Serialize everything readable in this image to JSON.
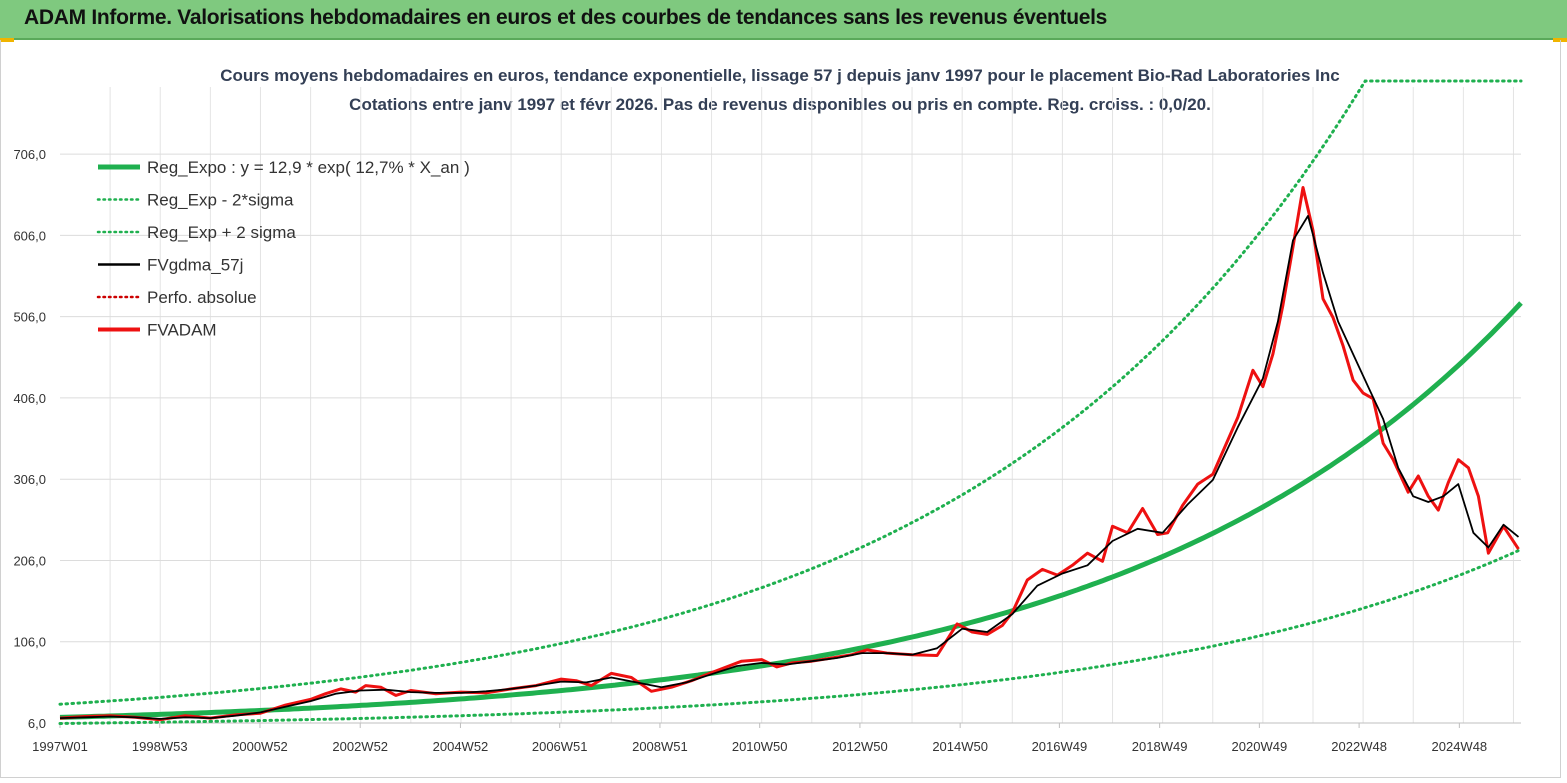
{
  "header": {
    "title": "ADAM Informe. Valorisations hebdomadaires en euros et des courbes de tendances sans les revenus éventuels"
  },
  "colors": {
    "banner": "#7fc97f",
    "reg": "#1fb04f",
    "fv": "#000000",
    "fvadam": "#ee1111",
    "perf": "#cc0000"
  },
  "chart_data": {
    "type": "line",
    "title": "Cours moyens hebdomadaires en euros, tendance exponentielle, lissage 57 j depuis janv 1997 pour le placement Bio-Rad Laboratories Inc",
    "subtitle": "Cotations entre janv 1997 et févr 2026. Pas de revenus disponibles ou pris en  compte. Reg. croiss. : 0,0/20.",
    "xlabel": "",
    "ylabel": "",
    "x_range": [
      1997.0,
      2026.15
    ],
    "ylim": [
      6,
      796
    ],
    "yticks": [
      6,
      106,
      206,
      306,
      406,
      506,
      606,
      706
    ],
    "ytick_labels": [
      "6,0",
      "106,0",
      "206,0",
      "306,0",
      "406,0",
      "506,0",
      "606,0",
      "706,0"
    ],
    "xticks": [
      1997.0,
      1998.99,
      2000.99,
      2002.99,
      2004.99,
      2006.97,
      2008.97,
      2010.96,
      2012.96,
      2014.96,
      2016.94,
      2018.94,
      2020.93,
      2022.92,
      2024.92
    ],
    "xtick_labels": [
      "1997W01",
      "1998W53",
      "2000W52",
      "2002W52",
      "2004W52",
      "2006W51",
      "2008W51",
      "2010W50",
      "2012W50",
      "2014W50",
      "2016W49",
      "2018W49",
      "2020W49",
      "2022W48",
      "2024W48"
    ],
    "legend": [
      {
        "name": "Reg_Expo : y = 12,9 * exp( 12,7% *  X_an )",
        "style": "thick-solid",
        "color": "#1fb04f"
      },
      {
        "name": "Reg_Exp - 2*sigma",
        "style": "dotted",
        "color": "#1fb04f"
      },
      {
        "name": "Reg_Exp + 2 sigma",
        "style": "dotted",
        "color": "#1fb04f"
      },
      {
        "name": "FVgdma_57j",
        "style": "solid",
        "color": "#000000"
      },
      {
        "name": "Perfo. absolue",
        "style": "dotted",
        "color": "#cc0000"
      },
      {
        "name": "FVADAM",
        "style": "thick-solid",
        "color": "#ee1111"
      }
    ],
    "legend_position": "top-left",
    "regression": {
      "a": 12.9,
      "rate": 0.127,
      "x0": 1997.0,
      "lower_factor": 0.42,
      "upper_factor": 2.26,
      "cap": 796
    },
    "series": [
      {
        "name": "FVADAM",
        "x": [
          1997.0,
          1997.5,
          1998.0,
          1998.5,
          1999.0,
          1999.5,
          2000.0,
          2000.5,
          2001.0,
          2001.5,
          2002.0,
          2002.3,
          2002.6,
          2002.9,
          2003.1,
          2003.4,
          2003.7,
          2004.0,
          2004.5,
          2005.0,
          2005.5,
          2006.0,
          2006.5,
          2007.0,
          2007.3,
          2007.6,
          2008.0,
          2008.4,
          2008.8,
          2009.2,
          2009.6,
          2010.0,
          2010.3,
          2010.6,
          2011.0,
          2011.3,
          2011.6,
          2012.0,
          2012.4,
          2012.8,
          2013.1,
          2013.5,
          2014.0,
          2014.5,
          2014.9,
          2015.2,
          2015.5,
          2015.8,
          2016.0,
          2016.3,
          2016.6,
          2016.9,
          2017.2,
          2017.5,
          2017.8,
          2018.0,
          2018.3,
          2018.6,
          2018.9,
          2019.1,
          2019.4,
          2019.7,
          2020.0,
          2020.2,
          2020.5,
          2020.8,
          2021.0,
          2021.2,
          2021.4,
          2021.6,
          2021.8,
          2022.0,
          2022.2,
          2022.4,
          2022.6,
          2022.8,
          2023.0,
          2023.2,
          2023.4,
          2023.6,
          2023.9,
          2024.1,
          2024.3,
          2024.5,
          2024.7,
          2024.9,
          2025.1,
          2025.3,
          2025.5,
          2025.8,
          2026.1
        ],
        "values": [
          12,
          14,
          15,
          13,
          10,
          15,
          12,
          16,
          18,
          28,
          35,
          42,
          48,
          44,
          52,
          50,
          40,
          46,
          42,
          44,
          43,
          48,
          52,
          60,
          58,
          52,
          67,
          62,
          45,
          50,
          58,
          68,
          75,
          82,
          84,
          75,
          80,
          82,
          86,
          90,
          96,
          92,
          90,
          89,
          128,
          118,
          115,
          126,
          142,
          182,
          195,
          188,
          200,
          215,
          205,
          248,
          240,
          270,
          238,
          240,
          274,
          300,
          312,
          340,
          382,
          440,
          420,
          460,
          520,
          592,
          665,
          612,
          528,
          505,
          470,
          428,
          412,
          405,
          350,
          330,
          290,
          310,
          285,
          268,
          302,
          330,
          320,
          285,
          215,
          248,
          220
        ]
      },
      {
        "name": "FVgdma_57j",
        "x": [
          1997.0,
          1997.5,
          1998.0,
          1998.5,
          1999.0,
          1999.5,
          2000.0,
          2000.5,
          2001.0,
          2001.5,
          2002.0,
          2002.5,
          2003.0,
          2003.5,
          2004.0,
          2004.5,
          2005.0,
          2005.5,
          2006.0,
          2006.5,
          2007.0,
          2007.5,
          2008.0,
          2008.5,
          2009.0,
          2009.5,
          2010.0,
          2010.5,
          2011.0,
          2011.5,
          2012.0,
          2012.5,
          2013.0,
          2013.5,
          2014.0,
          2014.5,
          2015.0,
          2015.5,
          2016.0,
          2016.5,
          2017.0,
          2017.5,
          2018.0,
          2018.5,
          2019.0,
          2019.5,
          2020.0,
          2020.5,
          2021.0,
          2021.3,
          2021.6,
          2021.9,
          2022.2,
          2022.5,
          2022.8,
          2023.1,
          2023.4,
          2023.7,
          2024.0,
          2024.3,
          2024.6,
          2024.9,
          2025.2,
          2025.5,
          2025.8,
          2026.1
        ],
        "values": [
          12,
          13,
          14,
          13,
          11,
          13,
          12,
          15,
          19,
          26,
          33,
          42,
          46,
          47,
          44,
          43,
          43,
          45,
          48,
          52,
          57,
          56,
          62,
          56,
          50,
          56,
          66,
          76,
          80,
          78,
          82,
          86,
          92,
          92,
          90,
          98,
          122,
          118,
          140,
          175,
          190,
          200,
          230,
          245,
          240,
          275,
          305,
          370,
          430,
          500,
          600,
          630,
          560,
          500,
          460,
          420,
          380,
          320,
          285,
          278,
          285,
          300,
          240,
          222,
          250,
          235
        ]
      }
    ]
  }
}
